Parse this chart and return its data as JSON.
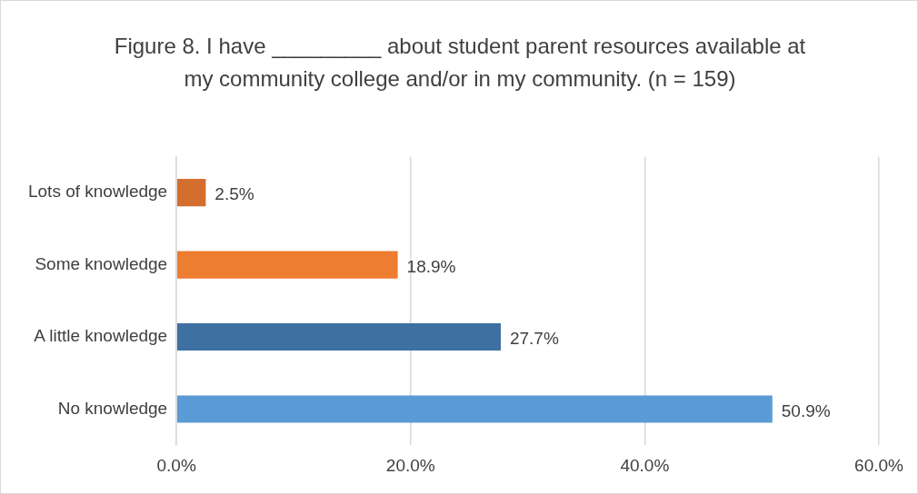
{
  "chart_data": {
    "type": "bar",
    "orientation": "horizontal",
    "title": "Figure 8. I have _________ about student parent resources available at my community college and/or in my community. (n = 159)",
    "categories": [
      "Lots of knowledge",
      "Some knowledge",
      "A little knowledge",
      "No knowledge"
    ],
    "values": [
      2.5,
      18.9,
      27.7,
      50.9
    ],
    "colors": [
      "#d36e2f",
      "#ed7d31",
      "#3e70a1",
      "#5b9bd5"
    ],
    "value_labels": [
      "2.5%",
      "18.9%",
      "27.7%",
      "50.9%"
    ],
    "xlim": [
      0,
      60
    ],
    "xticks": [
      {
        "value": 0,
        "label": "0.0%"
      },
      {
        "value": 20,
        "label": "20.0%"
      },
      {
        "value": 40,
        "label": "40.0%"
      },
      {
        "value": 60,
        "label": "60.0%"
      }
    ],
    "grid": "x"
  }
}
